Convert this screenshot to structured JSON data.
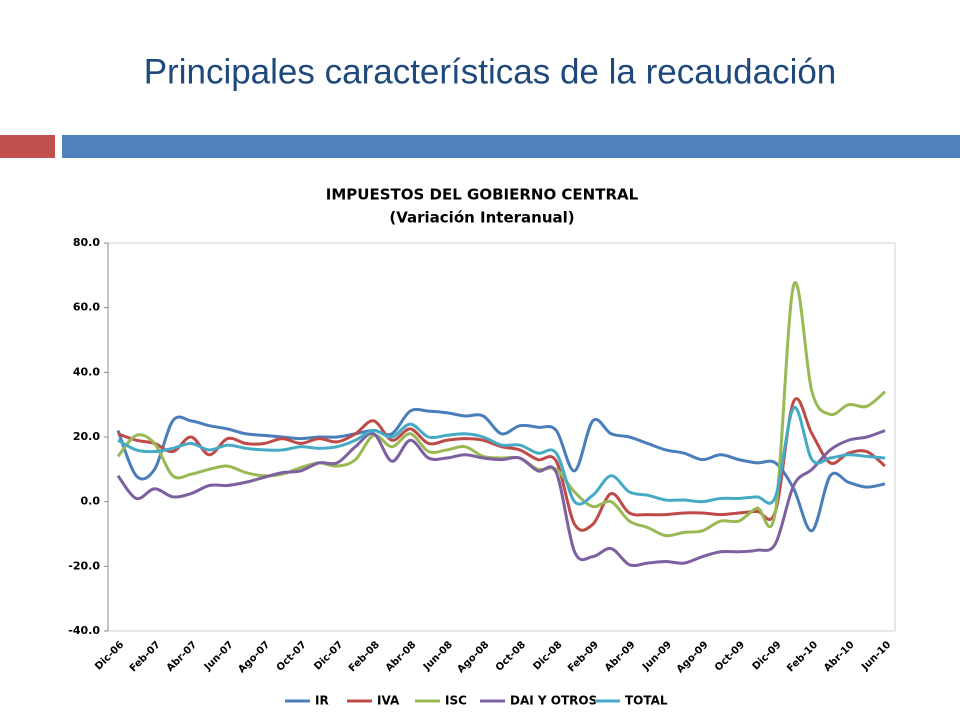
{
  "slide_title": "Principales características de la recaudación",
  "chart_data": {
    "type": "line",
    "title": "IMPUESTOS DEL GOBIERNO CENTRAL",
    "subtitle": "(Variación Interanual)",
    "categories": [
      "Dic-06",
      null,
      "Feb-07",
      null,
      "Abr-07",
      null,
      "Jun-07",
      null,
      "Ago-07",
      null,
      "Oct-07",
      null,
      "Dic-07",
      null,
      "Feb-08",
      null,
      "Abr-08",
      null,
      "Jun-08",
      null,
      "Ago-08",
      null,
      "Oct-08",
      null,
      "Dic-08",
      null,
      "Feb-09",
      null,
      "Abr-09",
      null,
      "Jun-09",
      null,
      "Ago-09",
      null,
      "Oct-09",
      null,
      "Dic-09",
      null,
      "Feb-10",
      null,
      "Abr-10",
      null,
      "Jun-10"
    ],
    "series": [
      {
        "name": "IR",
        "color": "#4a7ebb",
        "values": [
          22,
          8,
          10,
          25,
          25,
          23.5,
          22.5,
          21,
          20.5,
          20,
          19.5,
          20,
          20,
          21,
          22,
          21,
          28,
          28,
          27.5,
          26.5,
          26.5,
          21,
          23.5,
          23,
          22,
          9.5,
          25,
          21,
          20,
          18,
          16,
          15,
          13,
          14.5,
          13,
          12,
          12,
          4,
          -9,
          8,
          6,
          4.5,
          5.5
        ]
      },
      {
        "name": "IVA",
        "color": "#be4b48",
        "values": [
          21,
          19,
          18,
          15.5,
          20,
          14.5,
          19.5,
          18,
          18,
          19.5,
          18,
          19.5,
          18.5,
          21,
          25,
          19,
          22.5,
          18,
          19,
          19.5,
          19,
          17,
          16,
          13,
          12.5,
          -7,
          -7,
          2.5,
          -3.5,
          -4,
          -4,
          -3.5,
          -3.5,
          -4,
          -3.5,
          -3,
          -3,
          31,
          21,
          12,
          15,
          15.5,
          11
        ]
      },
      {
        "name": "ISC",
        "color": "#98b954",
        "values": [
          14,
          20.5,
          18,
          8,
          8.5,
          10,
          11,
          9,
          8,
          8.5,
          10.5,
          12,
          11,
          13,
          20.5,
          17,
          21,
          15.5,
          16,
          17,
          14,
          13.5,
          13.5,
          10,
          10,
          3,
          -1.5,
          0,
          -6,
          -8,
          -10.5,
          -9.5,
          -9,
          -6,
          -6,
          -2,
          -3,
          67,
          34,
          27,
          30,
          29.5,
          34
        ]
      },
      {
        "name": "DAI Y OTROS",
        "color": "#7d60a0",
        "values": [
          8,
          1,
          4,
          1.5,
          2.5,
          5,
          5,
          6,
          7.5,
          9,
          9.5,
          12,
          12,
          17,
          21,
          12.5,
          19,
          13.5,
          13.5,
          14.5,
          13.5,
          13,
          13.5,
          9.5,
          9,
          -15.5,
          -17,
          -14.5,
          -19.5,
          -19,
          -18.5,
          -19,
          -17,
          -15.5,
          -15.5,
          -15,
          -13,
          5,
          10,
          16,
          19,
          20,
          22
        ]
      },
      {
        "name": "TOTAL",
        "color": "#46aac5",
        "values": [
          19,
          16,
          15.5,
          16.5,
          18,
          16,
          17.5,
          16.5,
          16,
          16,
          17,
          16.5,
          17,
          19,
          22,
          20,
          24,
          20,
          20.5,
          21,
          20,
          17.5,
          17.5,
          15,
          15,
          0,
          2,
          8,
          3,
          2,
          0.5,
          0.5,
          0,
          1,
          1,
          1.5,
          1.5,
          29,
          13,
          13.5,
          14.5,
          14,
          13.5
        ]
      }
    ],
    "ylim": [
      -40,
      80
    ],
    "yticks": [
      {
        "value": -40,
        "label": "-40.0"
      },
      {
        "value": -20,
        "label": "-20.0"
      },
      {
        "value": 0,
        "label": "0.0"
      },
      {
        "value": 20,
        "label": "20.0"
      },
      {
        "value": 40,
        "label": "40.0"
      },
      {
        "value": 60,
        "label": "60.0"
      },
      {
        "value": 80,
        "label": "80.0"
      }
    ],
    "grid": false,
    "legend": "bottom"
  }
}
